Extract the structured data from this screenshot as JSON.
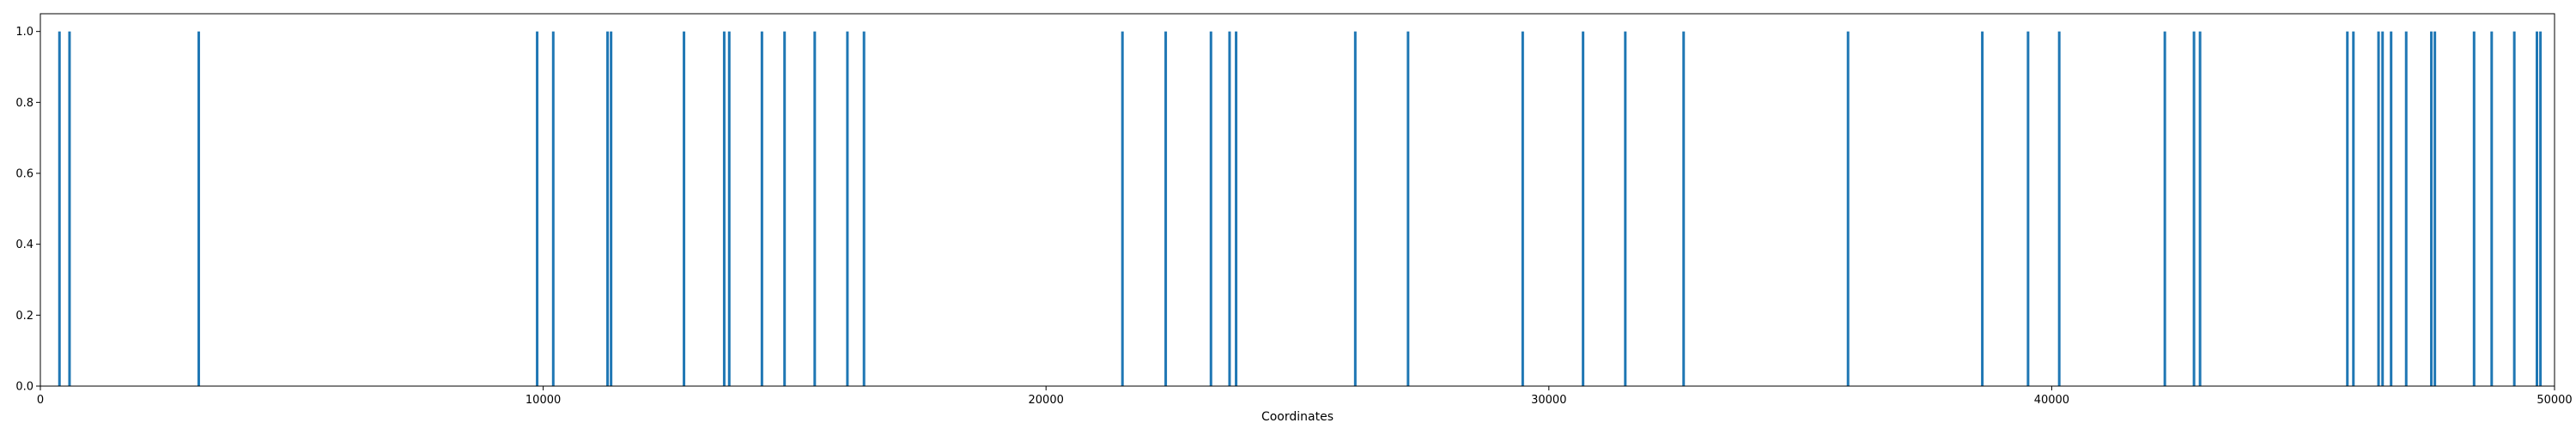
{
  "chart_data": {
    "type": "bar",
    "title": "",
    "xlabel": "Coordinates",
    "ylabel": "",
    "xlim": [
      0,
      50000
    ],
    "ylim": [
      0,
      1.05
    ],
    "x_ticks": [
      0,
      10000,
      20000,
      30000,
      40000,
      50000
    ],
    "x_tick_labels": [
      "0",
      "10000",
      "20000",
      "30000",
      "40000",
      "50000"
    ],
    "y_ticks": [
      0.0,
      0.2,
      0.4,
      0.6,
      0.8,
      1.0
    ],
    "y_tick_labels": [
      "0.0",
      "0.2",
      "0.4",
      "0.6",
      "0.8",
      "1.0"
    ],
    "grid": false,
    "legend": "none",
    "bar_color": "#1f77b4",
    "series": [
      {
        "x": [
          380,
          580,
          3150,
          9880,
          10200,
          11280,
          11350,
          12800,
          13600,
          13700,
          14350,
          14800,
          15400,
          16050,
          16380,
          21520,
          22380,
          23280,
          23650,
          23780,
          26150,
          27200,
          29480,
          30680,
          31520,
          32680,
          35950,
          38620,
          39530,
          40150,
          42250,
          42830,
          42950,
          45880,
          46000,
          46500,
          46580,
          46750,
          47050,
          47550,
          47620,
          48400,
          48750,
          49200,
          49650,
          49720
        ],
        "values": [
          1,
          1,
          1,
          1,
          1,
          1,
          1,
          1,
          1,
          1,
          1,
          1,
          1,
          1,
          1,
          1,
          1,
          1,
          1,
          1,
          1,
          1,
          1,
          1,
          1,
          1,
          1,
          1,
          1,
          1,
          1,
          1,
          1,
          1,
          1,
          1,
          1,
          1,
          1,
          1,
          1,
          1,
          1,
          1,
          1,
          1
        ]
      }
    ]
  }
}
